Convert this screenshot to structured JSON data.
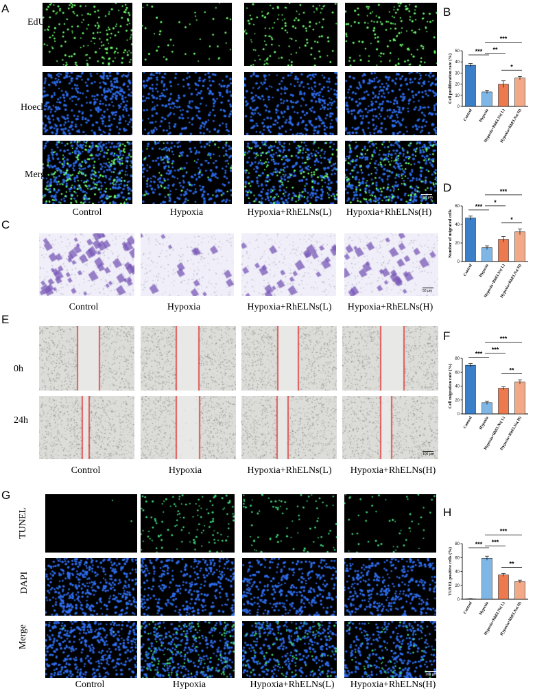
{
  "panels": {
    "A": {
      "label": "A",
      "rows": [
        "EdU",
        "Hoechst",
        "Merge"
      ],
      "columns": [
        "Control",
        "Hypoxia",
        "Hypoxia+RhELNs(L)",
        "Hypoxia+RhELNs(H)"
      ],
      "scale_bar": "100 μm"
    },
    "C": {
      "label": "C",
      "columns": [
        "Control",
        "Hypoxia",
        "Hypoxia+RhELNs(L)",
        "Hypoxia+RhELNs(H)"
      ],
      "scale_bar": "50 μm"
    },
    "E": {
      "label": "E",
      "rows": [
        "0h",
        "24h"
      ],
      "columns": [
        "Control",
        "Hypoxia",
        "Hypoxia+RhELNs(L)",
        "Hypoxia+RhELNs(H)"
      ],
      "scale_bar": "100 μm"
    },
    "G": {
      "label": "G",
      "rows": [
        "TUNEL",
        "DAPI",
        "Merge"
      ],
      "columns": [
        "Control",
        "Hypoxia",
        "Hypoxia+RhELNs(L)",
        "Hypoxia+RhELNs(H)"
      ],
      "scale_bar": "100 μm"
    }
  },
  "colors": {
    "control": "#3a7fc8",
    "hypoxia": "#7eb6e6",
    "low": "#ec7a4e",
    "high": "#f2a987",
    "edu": "#6dff6d",
    "nuclei": "#2e6ff2",
    "tunel": "#3fd67a",
    "crystal_violet": "#7a5ab8",
    "wound_line": "#e00000"
  },
  "chart_data": [
    {
      "id": "B",
      "label": "B",
      "type": "bar",
      "categories": [
        "Control",
        "Hypoxia",
        "Hypoxia+RhELNs( L)",
        "Hypoxia+RhELNs( H)"
      ],
      "values": [
        37,
        13,
        20,
        25.5
      ],
      "errors": [
        1.5,
        1.5,
        3,
        1.5
      ],
      "ylabel": "Cell proliferation rate (%)",
      "ylim": [
        0,
        50
      ],
      "yticks": [
        "0",
        "10",
        "20",
        "30",
        "40",
        "50"
      ],
      "sig": [
        {
          "from": 0,
          "to": 1,
          "label": "***",
          "level": 0
        },
        {
          "from": 1,
          "to": 2,
          "label": "**",
          "level": 1
        },
        {
          "from": 2,
          "to": 3,
          "label": "*",
          "level": 0
        },
        {
          "from": 1,
          "to": 3,
          "label": "***",
          "level": 2
        }
      ]
    },
    {
      "id": "D",
      "label": "D",
      "type": "bar",
      "categories": [
        "Control",
        "Hypoxia",
        "Hypoxia+RhELNs( L)",
        "Hypoxia+RhELNs( H)"
      ],
      "values": [
        47,
        15,
        24,
        32
      ],
      "errors": [
        2,
        2,
        3,
        3
      ],
      "ylabel": "Number of migrated cells",
      "ylim": [
        0,
        60
      ],
      "yticks": [
        "0",
        "20",
        "40",
        "60"
      ],
      "sig": [
        {
          "from": 0,
          "to": 1,
          "label": "***",
          "level": 0
        },
        {
          "from": 1,
          "to": 2,
          "label": "*",
          "level": 1
        },
        {
          "from": 2,
          "to": 3,
          "label": "*",
          "level": 0
        },
        {
          "from": 1,
          "to": 3,
          "label": "***",
          "level": 2
        }
      ]
    },
    {
      "id": "F",
      "label": "F",
      "type": "bar",
      "categories": [
        "Control",
        "Hypoxia",
        "Hypoxia+RhELNs( L)",
        "Hypoxia+RhELNs( H)"
      ],
      "values": [
        70,
        16,
        37,
        46
      ],
      "errors": [
        2.5,
        2.5,
        2,
        3
      ],
      "ylabel": "Cell migration rate (%)",
      "ylim": [
        0,
        80
      ],
      "yticks": [
        "0",
        "20",
        "40",
        "60",
        "80"
      ],
      "sig": [
        {
          "from": 0,
          "to": 1,
          "label": "***",
          "level": 0
        },
        {
          "from": 1,
          "to": 2,
          "label": "***",
          "level": 1
        },
        {
          "from": 2,
          "to": 3,
          "label": "**",
          "level": 0
        },
        {
          "from": 1,
          "to": 3,
          "label": "***",
          "level": 2
        }
      ]
    },
    {
      "id": "H",
      "label": "H",
      "type": "bar",
      "categories": [
        "Control",
        "Hypoxia",
        "Hypoxia+RhELNs( L)",
        "Hypoxia+RhELNs( H)"
      ],
      "values": [
        0.5,
        59,
        35,
        25.5
      ],
      "errors": [
        0.3,
        3,
        2,
        2
      ],
      "ylabel": "TUNEL positive cells (%)",
      "ylim": [
        0,
        80
      ],
      "yticks": [
        "0",
        "20",
        "40",
        "60",
        "80"
      ],
      "sig": [
        {
          "from": 0,
          "to": 1,
          "label": "***",
          "level": 0
        },
        {
          "from": 1,
          "to": 2,
          "label": "***",
          "level": 1
        },
        {
          "from": 2,
          "to": 3,
          "label": "**",
          "level": 0
        },
        {
          "from": 1,
          "to": 3,
          "label": "***",
          "level": 2
        }
      ]
    }
  ]
}
